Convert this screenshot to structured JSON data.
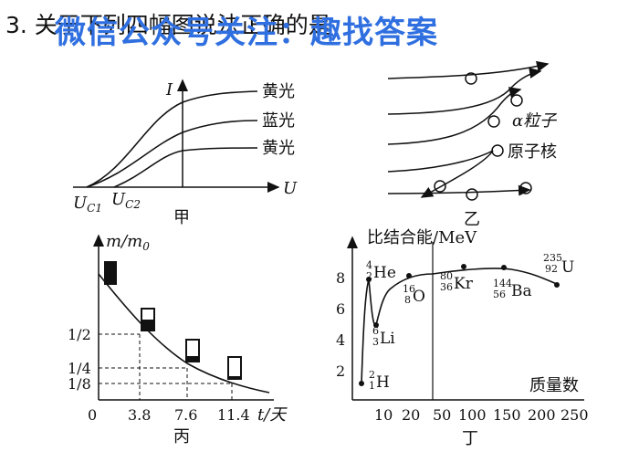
{
  "question": "3. 关于下列四幅图说法正确的是",
  "watermark": "微信公众号关注：趣找答案",
  "panel_a": {
    "caption": "甲",
    "y_axis": "I",
    "x_axis": "U",
    "curves": [
      "黄光",
      "蓝光",
      "黄光"
    ],
    "uc1": "U",
    "uc1_sub": "C1",
    "uc2": "U",
    "uc2_sub": "C2"
  },
  "panel_b": {
    "caption": "乙",
    "alpha_label": "α粒子",
    "nucleus_label": "原子核"
  },
  "panel_c": {
    "caption": "丙",
    "y_axis": "m/m",
    "y_axis_sub": "0",
    "x_axis": "t/天",
    "y_ticks": [
      "1/2",
      "1/4",
      "1/8"
    ],
    "x_ticks": [
      "0",
      "3.8",
      "7.6",
      "11.4"
    ]
  },
  "panel_d": {
    "caption": "丁",
    "y_axis": "比结合能/MeV",
    "x_axis": "质量数",
    "y_ticks": [
      "2",
      "4",
      "6",
      "8"
    ],
    "x_ticks": [
      "10",
      "20",
      "50",
      "100",
      "150",
      "200",
      "250"
    ],
    "nuclides": [
      {
        "mass": "4",
        "z": "2",
        "sym": "He"
      },
      {
        "mass": "6",
        "z": "3",
        "sym": "Li"
      },
      {
        "mass": "2",
        "z": "1",
        "sym": "H"
      },
      {
        "mass": "16",
        "z": "8",
        "sym": "O"
      },
      {
        "mass": "80",
        "z": "36",
        "sym": "Kr"
      },
      {
        "mass": "144",
        "z": "56",
        "sym": "Ba"
      },
      {
        "mass": "235",
        "z": "92",
        "sym": "U"
      }
    ]
  }
}
